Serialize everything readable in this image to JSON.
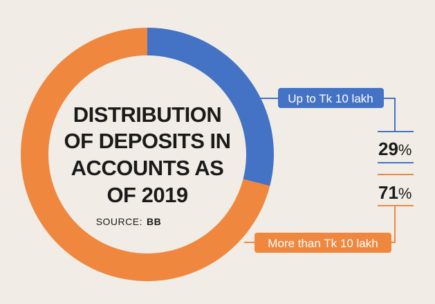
{
  "chart_data": {
    "type": "pie",
    "title_lines": [
      "DISTRIBUTION",
      "OF DEPOSITS IN",
      "ACCOUNTS AS",
      "OF 2019"
    ],
    "source_label": "SOURCE:",
    "source_name": "BB",
    "slices": [
      {
        "label": "Up to Tk 10 lakh",
        "value": 29,
        "value_text": "29",
        "unit": "%",
        "color": "#4472c4"
      },
      {
        "label": "More than Tk 10 lakh",
        "value": 71,
        "value_text": "71",
        "unit": "%",
        "color": "#f0873f"
      }
    ]
  }
}
